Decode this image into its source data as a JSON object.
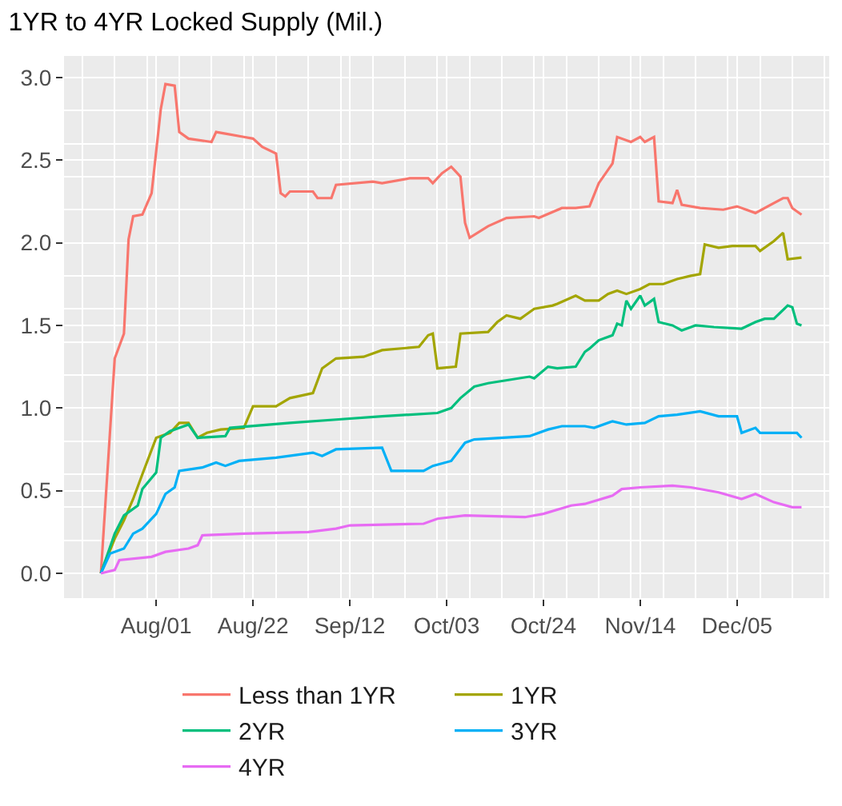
{
  "chart_data": {
    "type": "line",
    "title": "1YR to 4YR Locked Supply (Mil.)",
    "xlim": [
      "--07-12",
      "--12-25"
    ],
    "xticks": [
      {
        "value": "--08-01",
        "label": "Aug/01"
      },
      {
        "value": "--08-22",
        "label": "Aug/22"
      },
      {
        "value": "--09-12",
        "label": "Sep/12"
      },
      {
        "value": "--10-03",
        "label": "Oct/03"
      },
      {
        "value": "--10-24",
        "label": "Oct/24"
      },
      {
        "value": "--11-14",
        "label": "Nov/14"
      },
      {
        "value": "--12-05",
        "label": "Dec/05"
      }
    ],
    "ylim": [
      -0.15,
      3.13
    ],
    "yticks": [
      {
        "value": 0,
        "label": "0.0"
      },
      {
        "value": 0.5,
        "label": "0.5"
      },
      {
        "value": 1,
        "label": "1.0"
      },
      {
        "value": 1.5,
        "label": "1.5"
      },
      {
        "value": 2,
        "label": "2.0"
      },
      {
        "value": 2.5,
        "label": "2.5"
      },
      {
        "value": 3,
        "label": "3.0"
      }
    ],
    "grid": true,
    "legend": "bottom",
    "marker": "none",
    "line_style": "solid",
    "series": [
      {
        "name": "Less than 1YR",
        "color": "#f8766d",
        "x": [
          "--07-20",
          "--07-23",
          "--07-25",
          "--07-26",
          "--07-27",
          "--07-29",
          "--07-31",
          "--08-02",
          "--08-03",
          "--08-05",
          "--08-06",
          "--08-08",
          "--08-13",
          "--08-14",
          "--08-16",
          "--08-20",
          "--08-22",
          "--08-24",
          "--08-27",
          "--08-28",
          "--08-29",
          "--08-30",
          "--09-04",
          "--09-05",
          "--09-08",
          "--09-09",
          "--09-17",
          "--09-19",
          "--09-25",
          "--09-29",
          "--09-30",
          "--10-02",
          "--10-04",
          "--10-05",
          "--10-06",
          "--10-07",
          "--10-08",
          "--10-12",
          "--10-16",
          "--10-22",
          "--10-23",
          "--10-28",
          "--10-31",
          "--11-03",
          "--11-05",
          "--11-08",
          "--11-09",
          "--11-12",
          "--11-14",
          "--11-15",
          "--11-17",
          "--11-18",
          "--11-21",
          "--11-22",
          "--11-23",
          "--11-27",
          "--12-02",
          "--12-05",
          "--12-09",
          "--12-15",
          "--12-16",
          "--12-17",
          "--12-19"
        ],
        "values": [
          0,
          1.3,
          1.45,
          2.02,
          2.16,
          2.17,
          2.3,
          2.81,
          2.96,
          2.95,
          2.67,
          2.63,
          2.61,
          2.67,
          2.66,
          2.64,
          2.63,
          2.58,
          2.54,
          2.3,
          2.28,
          2.31,
          2.31,
          2.27,
          2.27,
          2.35,
          2.37,
          2.36,
          2.39,
          2.39,
          2.36,
          2.42,
          2.46,
          2.43,
          2.4,
          2.12,
          2.03,
          2.1,
          2.15,
          2.16,
          2.15,
          2.21,
          2.21,
          2.22,
          2.36,
          2.48,
          2.64,
          2.61,
          2.64,
          2.61,
          2.64,
          2.25,
          2.24,
          2.32,
          2.23,
          2.21,
          2.2,
          2.22,
          2.18,
          2.27,
          2.27,
          2.21,
          2.17
        ]
      },
      {
        "name": "1YR",
        "color": "#a3a500",
        "x": [
          "--07-20",
          "--07-23",
          "--07-25",
          "--07-27",
          "--07-29",
          "--08-01",
          "--08-04",
          "--08-06",
          "--08-08",
          "--08-10",
          "--08-12",
          "--08-15",
          "--08-20",
          "--08-22",
          "--08-27",
          "--08-30",
          "--09-04",
          "--09-06",
          "--09-09",
          "--09-15",
          "--09-19",
          "--09-27",
          "--09-29",
          "--09-30",
          "--10-01",
          "--10-05",
          "--10-06",
          "--10-12",
          "--10-14",
          "--10-16",
          "--10-19",
          "--10-20",
          "--10-22",
          "--10-26",
          "--10-27",
          "--10-31",
          "--11-02",
          "--11-05",
          "--11-07",
          "--11-09",
          "--11-11",
          "--11-14",
          "--11-16",
          "--11-19",
          "--11-22",
          "--11-25",
          "--11-27",
          "--11-28",
          "--12-01",
          "--12-04",
          "--12-09",
          "--12-10",
          "--12-13",
          "--12-15",
          "--12-16",
          "--12-19"
        ],
        "values": [
          0,
          0.21,
          0.32,
          0.45,
          0.6,
          0.82,
          0.85,
          0.91,
          0.91,
          0.82,
          0.85,
          0.87,
          0.88,
          1.01,
          1.01,
          1.06,
          1.09,
          1.24,
          1.3,
          1.31,
          1.35,
          1.37,
          1.44,
          1.45,
          1.24,
          1.25,
          1.45,
          1.46,
          1.52,
          1.56,
          1.54,
          1.56,
          1.6,
          1.62,
          1.63,
          1.68,
          1.65,
          1.65,
          1.69,
          1.71,
          1.69,
          1.72,
          1.75,
          1.75,
          1.78,
          1.8,
          1.81,
          1.99,
          1.97,
          1.98,
          1.98,
          1.95,
          2.01,
          2.06,
          1.9,
          1.91
        ]
      },
      {
        "name": "2YR",
        "color": "#00bf7d",
        "x": [
          "--07-20",
          "--07-23",
          "--07-25",
          "--07-28",
          "--07-29",
          "--08-01",
          "--08-02",
          "--08-04",
          "--08-08",
          "--08-10",
          "--08-16",
          "--08-17",
          "--08-30",
          "--09-09",
          "--09-19",
          "--10-01",
          "--10-04",
          "--10-06",
          "--10-09",
          "--10-12",
          "--10-21",
          "--10-22",
          "--10-25",
          "--10-27",
          "--10-31",
          "--11-02",
          "--11-03",
          "--11-05",
          "--11-08",
          "--11-09",
          "--11-10",
          "--11-11",
          "--11-12",
          "--11-14",
          "--11-15",
          "--11-17",
          "--11-18",
          "--11-21",
          "--11-23",
          "--11-26",
          "--11-30",
          "--12-06",
          "--12-09",
          "--12-11",
          "--12-13",
          "--12-16",
          "--12-17",
          "--12-18",
          "--12-19"
        ],
        "values": [
          0,
          0.24,
          0.35,
          0.41,
          0.51,
          0.61,
          0.82,
          0.86,
          0.9,
          0.82,
          0.83,
          0.88,
          0.91,
          0.93,
          0.95,
          0.97,
          1.0,
          1.06,
          1.13,
          1.15,
          1.19,
          1.18,
          1.25,
          1.24,
          1.25,
          1.34,
          1.36,
          1.41,
          1.44,
          1.51,
          1.5,
          1.65,
          1.6,
          1.68,
          1.62,
          1.66,
          1.52,
          1.5,
          1.47,
          1.5,
          1.49,
          1.48,
          1.52,
          1.54,
          1.54,
          1.62,
          1.61,
          1.51,
          1.5
        ]
      },
      {
        "name": "3YR",
        "color": "#00b0f6",
        "x": [
          "--07-20",
          "--07-22",
          "--07-25",
          "--07-27",
          "--07-29",
          "--08-01",
          "--08-03",
          "--08-05",
          "--08-06",
          "--08-11",
          "--08-14",
          "--08-16",
          "--08-19",
          "--08-27",
          "--09-04",
          "--09-06",
          "--09-09",
          "--09-19",
          "--09-21",
          "--09-28",
          "--09-30",
          "--10-04",
          "--10-07",
          "--10-09",
          "--10-21",
          "--10-25",
          "--10-28",
          "--11-02",
          "--11-04",
          "--11-08",
          "--11-11",
          "--11-15",
          "--11-18",
          "--11-22",
          "--11-27",
          "--12-01",
          "--12-05",
          "--12-06",
          "--12-09",
          "--12-10",
          "--12-18",
          "--12-19"
        ],
        "values": [
          0,
          0.12,
          0.15,
          0.24,
          0.27,
          0.36,
          0.48,
          0.52,
          0.62,
          0.64,
          0.67,
          0.65,
          0.68,
          0.7,
          0.73,
          0.71,
          0.75,
          0.76,
          0.62,
          0.62,
          0.65,
          0.68,
          0.79,
          0.81,
          0.83,
          0.87,
          0.89,
          0.89,
          0.88,
          0.92,
          0.9,
          0.91,
          0.95,
          0.96,
          0.98,
          0.95,
          0.95,
          0.85,
          0.88,
          0.85,
          0.85,
          0.82
        ]
      },
      {
        "name": "4YR",
        "color": "#e76bf3",
        "x": [
          "--07-20",
          "--07-23",
          "--07-24",
          "--07-31",
          "--08-03",
          "--08-08",
          "--08-10",
          "--08-11",
          "--08-20",
          "--09-03",
          "--09-09",
          "--09-12",
          "--09-28",
          "--10-01",
          "--10-07",
          "--10-20",
          "--10-24",
          "--10-30",
          "--11-02",
          "--11-08",
          "--11-10",
          "--11-14",
          "--11-21",
          "--11-25",
          "--12-01",
          "--12-06",
          "--12-09",
          "--12-13",
          "--12-17",
          "--12-19"
        ],
        "values": [
          0,
          0.02,
          0.08,
          0.1,
          0.13,
          0.15,
          0.17,
          0.23,
          0.24,
          0.25,
          0.27,
          0.29,
          0.3,
          0.33,
          0.35,
          0.34,
          0.36,
          0.41,
          0.42,
          0.47,
          0.51,
          0.52,
          0.53,
          0.52,
          0.49,
          0.45,
          0.48,
          0.43,
          0.4,
          0.4
        ]
      }
    ]
  }
}
